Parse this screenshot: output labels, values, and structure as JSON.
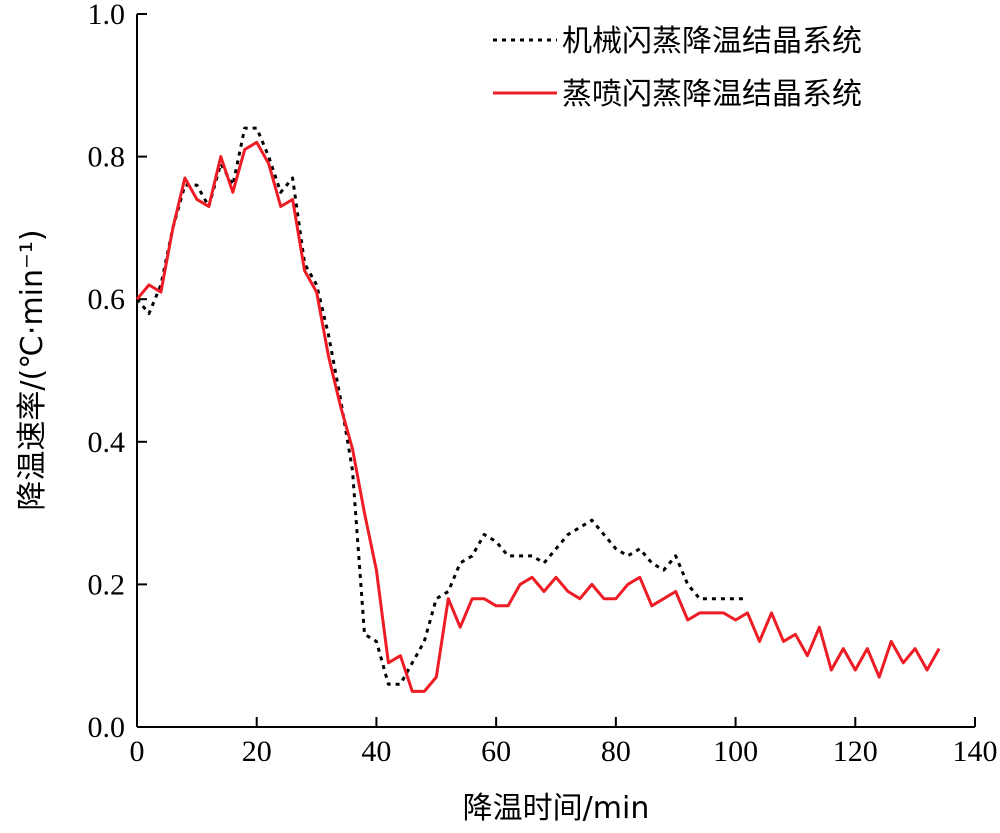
{
  "chart_data": {
    "type": "line",
    "xlabel": "降温时间/min",
    "ylabel": "降温速率/(℃·min⁻¹)",
    "xlim": [
      0,
      140
    ],
    "ylim": [
      0,
      1.0
    ],
    "x_ticks": [
      "0",
      "20",
      "40",
      "60",
      "80",
      "100",
      "120",
      "140"
    ],
    "y_ticks": [
      "0.0",
      "0.2",
      "0.4",
      "0.6",
      "0.8",
      "1.0"
    ],
    "grid": false,
    "legend_position": "top-right",
    "series": [
      {
        "name": "机械闪蒸降温结晶系统",
        "color": "#000000",
        "style": "dotted",
        "x": [
          0,
          2,
          4,
          6,
          8,
          10,
          12,
          14,
          16,
          18,
          20,
          22,
          24,
          26,
          28,
          30,
          32,
          34,
          36,
          38,
          40,
          42,
          44,
          46,
          48,
          50,
          52,
          54,
          56,
          58,
          60,
          62,
          64,
          66,
          68,
          70,
          72,
          74,
          76,
          78,
          80,
          82,
          84,
          86,
          88,
          90,
          92,
          94,
          96,
          98,
          100,
          102
        ],
        "y": [
          0.6,
          0.58,
          0.62,
          0.7,
          0.76,
          0.76,
          0.73,
          0.79,
          0.76,
          0.84,
          0.84,
          0.8,
          0.75,
          0.77,
          0.65,
          0.62,
          0.55,
          0.46,
          0.36,
          0.13,
          0.12,
          0.06,
          0.06,
          0.09,
          0.12,
          0.18,
          0.19,
          0.23,
          0.24,
          0.27,
          0.26,
          0.24,
          0.24,
          0.24,
          0.23,
          0.25,
          0.27,
          0.28,
          0.29,
          0.27,
          0.25,
          0.24,
          0.25,
          0.23,
          0.22,
          0.24,
          0.2,
          0.18,
          0.18,
          0.18,
          0.18,
          0.18
        ]
      },
      {
        "name": "蒸喷闪蒸降温结晶系统",
        "color": "#ee1c25",
        "style": "solid",
        "x": [
          0,
          2,
          4,
          6,
          8,
          10,
          12,
          14,
          16,
          18,
          20,
          22,
          24,
          26,
          28,
          30,
          32,
          34,
          36,
          38,
          40,
          42,
          44,
          46,
          48,
          50,
          52,
          54,
          56,
          58,
          60,
          62,
          64,
          66,
          68,
          70,
          72,
          74,
          76,
          78,
          80,
          82,
          84,
          86,
          88,
          90,
          92,
          94,
          96,
          98,
          100,
          102,
          104,
          106,
          108,
          110,
          112,
          114,
          116,
          118,
          120,
          122,
          124,
          126,
          128,
          130,
          132,
          134
        ],
        "y": [
          0.6,
          0.62,
          0.61,
          0.7,
          0.77,
          0.74,
          0.73,
          0.8,
          0.75,
          0.81,
          0.82,
          0.79,
          0.73,
          0.74,
          0.64,
          0.61,
          0.52,
          0.45,
          0.39,
          0.3,
          0.22,
          0.09,
          0.1,
          0.05,
          0.05,
          0.07,
          0.18,
          0.14,
          0.18,
          0.18,
          0.17,
          0.17,
          0.2,
          0.21,
          0.19,
          0.21,
          0.19,
          0.18,
          0.2,
          0.18,
          0.18,
          0.2,
          0.21,
          0.17,
          0.18,
          0.19,
          0.15,
          0.16,
          0.16,
          0.16,
          0.15,
          0.16,
          0.12,
          0.16,
          0.12,
          0.13,
          0.1,
          0.14,
          0.08,
          0.11,
          0.08,
          0.11,
          0.07,
          0.12,
          0.09,
          0.11,
          0.08,
          0.11
        ]
      }
    ]
  }
}
